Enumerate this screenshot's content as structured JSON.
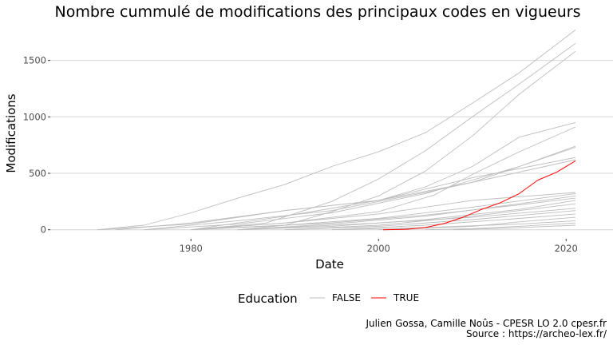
{
  "chart_data": {
    "type": "line",
    "title": "Nombre cummulé de modifications des principaux codes en vigueurs",
    "xlabel": "Date",
    "ylabel": "Modifications",
    "xlim": [
      1965,
      2025
    ],
    "ylim": [
      -80,
      1780
    ],
    "xticks": [
      1980,
      2000,
      2020
    ],
    "yticks": [
      0,
      500,
      1000,
      1500
    ],
    "grid": "horizontal-major",
    "legend": {
      "title": "Education",
      "position": "bottom",
      "entries": [
        {
          "label": "FALSE",
          "color": "#bdbdbd"
        },
        {
          "label": "TRUE",
          "color": "#ff0000"
        }
      ]
    },
    "series": [
      {
        "group": "FALSE",
        "x": [
          1970,
          1975,
          1980,
          1985,
          1990,
          1995,
          2000,
          2005,
          2010,
          2015,
          2021
        ],
        "values": [
          0,
          40,
          150,
          280,
          400,
          560,
          690,
          860,
          1120,
          1390,
          1770
        ]
      },
      {
        "group": "FALSE",
        "x": [
          1980,
          1988,
          1995,
          2000,
          2005,
          2010,
          2015,
          2021
        ],
        "values": [
          0,
          60,
          250,
          450,
          700,
          1000,
          1290,
          1650
        ]
      },
      {
        "group": "FALSE",
        "x": [
          1985,
          1990,
          1995,
          2000,
          2005,
          2010,
          2015,
          2021
        ],
        "values": [
          0,
          40,
          160,
          300,
          520,
          830,
          1200,
          1580
        ]
      },
      {
        "group": "FALSE",
        "x": [
          1970,
          1980,
          1990,
          2000,
          2005,
          2010,
          2015,
          2021
        ],
        "values": [
          0,
          50,
          170,
          260,
          380,
          560,
          820,
          950
        ]
      },
      {
        "group": "FALSE",
        "x": [
          1980,
          1990,
          2000,
          2006,
          2010,
          2015,
          2021
        ],
        "values": [
          0,
          60,
          160,
          310,
          490,
          690,
          910
        ]
      },
      {
        "group": "FALSE",
        "x": [
          1972,
          1980,
          1990,
          2000,
          2010,
          2015,
          2021
        ],
        "values": [
          0,
          60,
          170,
          260,
          420,
          560,
          740
        ]
      },
      {
        "group": "FALSE",
        "x": [
          1975,
          1985,
          1995,
          2005,
          2010,
          2015,
          2021
        ],
        "values": [
          0,
          50,
          150,
          320,
          440,
          560,
          730
        ]
      },
      {
        "group": "FALSE",
        "x": [
          1980,
          1990,
          2000,
          2010,
          2021
        ],
        "values": [
          0,
          120,
          260,
          460,
          640
        ]
      },
      {
        "group": "FALSE",
        "x": [
          1975,
          1985,
          1995,
          2005,
          2015,
          2021
        ],
        "values": [
          0,
          80,
          170,
          330,
          510,
          620
        ]
      },
      {
        "group": "FALSE",
        "x": [
          1980,
          1990,
          2000,
          2010,
          2021
        ],
        "values": [
          0,
          60,
          140,
          260,
          330
        ]
      },
      {
        "group": "FALSE",
        "x": [
          1980,
          1990,
          2000,
          2010,
          2021
        ],
        "values": [
          0,
          40,
          100,
          200,
          320
        ]
      },
      {
        "group": "FALSE",
        "x": [
          1985,
          1995,
          2005,
          2015,
          2021
        ],
        "values": [
          0,
          50,
          120,
          230,
          300
        ]
      },
      {
        "group": "FALSE",
        "x": [
          1980,
          1995,
          2005,
          2015,
          2021
        ],
        "values": [
          0,
          60,
          130,
          220,
          280
        ]
      },
      {
        "group": "FALSE",
        "x": [
          1985,
          1995,
          2005,
          2015,
          2021
        ],
        "values": [
          0,
          30,
          90,
          180,
          260
        ]
      },
      {
        "group": "FALSE",
        "x": [
          1990,
          2000,
          2010,
          2021
        ],
        "values": [
          0,
          40,
          120,
          230
        ]
      },
      {
        "group": "FALSE",
        "x": [
          1985,
          2000,
          2010,
          2021
        ],
        "values": [
          0,
          60,
          110,
          190
        ]
      },
      {
        "group": "FALSE",
        "x": [
          1990,
          2000,
          2010,
          2021
        ],
        "values": [
          0,
          30,
          90,
          170
        ]
      },
      {
        "group": "FALSE",
        "x": [
          1995,
          2005,
          2015,
          2021
        ],
        "values": [
          0,
          40,
          100,
          140
        ]
      },
      {
        "group": "FALSE",
        "x": [
          2000,
          2010,
          2015,
          2021
        ],
        "values": [
          0,
          30,
          70,
          110
        ]
      },
      {
        "group": "FALSE",
        "x": [
          1995,
          2005,
          2015,
          2021
        ],
        "values": [
          0,
          20,
          50,
          80
        ]
      },
      {
        "group": "FALSE",
        "x": [
          2005,
          2010,
          2015,
          2021
        ],
        "values": [
          0,
          10,
          30,
          60
        ]
      },
      {
        "group": "FALSE",
        "x": [
          2008,
          2014,
          2021
        ],
        "values": [
          0,
          15,
          40
        ]
      },
      {
        "group": "TRUE",
        "x": [
          2000.5,
          2003,
          2005,
          2007,
          2009,
          2011,
          2013,
          2015,
          2017,
          2019,
          2021
        ],
        "values": [
          0,
          4,
          20,
          55,
          110,
          180,
          240,
          320,
          440,
          510,
          610
        ]
      }
    ]
  },
  "caption": {
    "line1": "Julien Gossa, Camille Noûs - CPESR LO 2.0 cpesr.fr",
    "line2": "Source : https://archeo-lex.fr/"
  }
}
